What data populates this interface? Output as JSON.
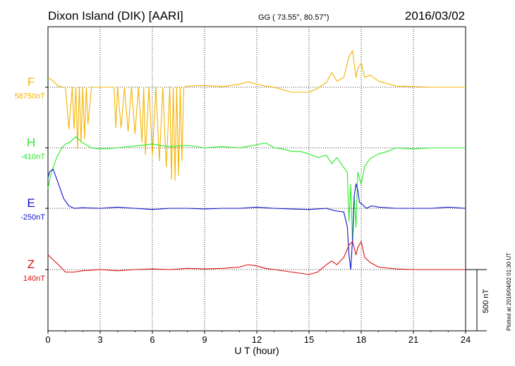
{
  "header": {
    "station": "Dixon Island (DIK)  [AARI]",
    "coords": "GG ( 73.55°,  80.57°)",
    "date": "2016/03/02"
  },
  "side_note": "Plotted at 2016/04/02 01:30 UT",
  "scale_label": "500 nT",
  "colors": {
    "F": "#f5b400",
    "H": "#22ee22",
    "E": "#1010d0",
    "Z": "#dd1010",
    "axis": "#000000"
  },
  "chart_data": {
    "type": "line",
    "xlabel": "U T (hour)",
    "xlim": [
      0,
      24
    ],
    "x_ticks": [
      "0",
      "3",
      "6",
      "9",
      "12",
      "15",
      "18",
      "21",
      "24"
    ],
    "scale_bar_nT": 500,
    "series": [
      {
        "name": "F",
        "baseline_label": "58750nT",
        "x": [
          0,
          0.3,
          0.6,
          0.9,
          1.0,
          1.2,
          1.4,
          1.5,
          1.6,
          1.7,
          1.8,
          1.9,
          2.0,
          2.1,
          2.2,
          2.3,
          2.5,
          3.0,
          3.5,
          3.8,
          3.9,
          4.0,
          4.2,
          4.4,
          4.6,
          4.8,
          5.0,
          5.2,
          5.4,
          5.5,
          5.6,
          5.8,
          6.0,
          6.2,
          6.4,
          6.6,
          6.8,
          7.0,
          7.1,
          7.2,
          7.3,
          7.4,
          7.5,
          7.6,
          7.7,
          7.8,
          8.0,
          9.0,
          10.0,
          11.0,
          11.5,
          12.0,
          12.5,
          13.0,
          14.0,
          15.0,
          15.5,
          16.0,
          16.3,
          16.6,
          17.0,
          17.3,
          17.5,
          17.7,
          17.8,
          18.0,
          18.2,
          18.5,
          19.0,
          20.0,
          21.0,
          22.0,
          23.0,
          24.0
        ],
        "y": [
          80,
          50,
          10,
          0,
          0,
          -340,
          0,
          -340,
          0,
          -500,
          0,
          -450,
          0,
          -420,
          0,
          -300,
          0,
          0,
          0,
          0,
          -330,
          0,
          -330,
          0,
          -360,
          0,
          -380,
          0,
          -450,
          0,
          -550,
          0,
          -560,
          0,
          -600,
          0,
          -650,
          0,
          -750,
          0,
          -760,
          0,
          -720,
          0,
          -600,
          0,
          10,
          15,
          5,
          25,
          45,
          25,
          10,
          0,
          -40,
          -40,
          -10,
          40,
          120,
          50,
          80,
          250,
          300,
          80,
          150,
          200,
          80,
          100,
          50,
          10,
          5,
          0,
          0,
          0
        ]
      },
      {
        "name": "H",
        "baseline_label": "-410nT",
        "x": [
          0,
          0.2,
          0.5,
          0.8,
          1.0,
          1.3,
          1.6,
          2.0,
          2.5,
          3.0,
          4.0,
          5.0,
          6.0,
          7.0,
          8.0,
          9.0,
          10.0,
          11.0,
          12.0,
          12.5,
          13.0,
          13.5,
          14.0,
          14.5,
          15.0,
          15.5,
          16.0,
          16.3,
          16.6,
          17.0,
          17.2,
          17.3,
          17.4,
          17.5,
          17.6,
          17.7,
          17.8,
          18.0,
          18.2,
          18.5,
          19.0,
          19.5,
          20.0,
          21.0,
          22.0,
          23.0,
          24.0
        ],
        "y": [
          -330,
          -200,
          -80,
          0,
          30,
          50,
          90,
          40,
          0,
          -10,
          0,
          15,
          30,
          10,
          20,
          0,
          10,
          0,
          25,
          40,
          0,
          -10,
          -30,
          -30,
          -50,
          -80,
          -60,
          -130,
          -80,
          -160,
          -200,
          -600,
          -300,
          -780,
          -400,
          -650,
          -200,
          -300,
          -150,
          -90,
          -50,
          -30,
          0,
          -10,
          0,
          0,
          0
        ]
      },
      {
        "name": "E",
        "baseline_label": "-250nT",
        "x": [
          0,
          0.1,
          0.3,
          0.6,
          0.9,
          1.2,
          1.5,
          2.0,
          3.0,
          4.0,
          5.0,
          6.0,
          7.0,
          8.0,
          9.0,
          10.0,
          11.0,
          12.0,
          13.0,
          14.0,
          15.0,
          16.0,
          16.5,
          17.0,
          17.2,
          17.3,
          17.4,
          17.5,
          17.6,
          17.7,
          17.8,
          17.9,
          18.0,
          18.3,
          18.6,
          19.0,
          20.0,
          21.0,
          22.0,
          23.0,
          24.0
        ],
        "y": [
          250,
          300,
          320,
          200,
          80,
          20,
          0,
          5,
          0,
          10,
          0,
          -10,
          0,
          0,
          -5,
          0,
          0,
          10,
          0,
          -5,
          -10,
          0,
          -20,
          -30,
          -150,
          -380,
          -500,
          -250,
          100,
          200,
          150,
          50,
          40,
          0,
          20,
          10,
          0,
          0,
          0,
          10,
          0
        ]
      },
      {
        "name": "Z",
        "baseline_label": "140nT",
        "x": [
          0,
          0.3,
          0.6,
          1.0,
          1.5,
          2.0,
          3.0,
          4.0,
          5.0,
          6.0,
          7.0,
          8.0,
          9.0,
          10.0,
          11.0,
          11.5,
          12.0,
          12.5,
          13.0,
          14.0,
          15.0,
          15.5,
          16.0,
          16.3,
          16.6,
          17.0,
          17.3,
          17.5,
          17.7,
          17.8,
          18.0,
          18.2,
          18.5,
          19.0,
          20.0,
          21.0,
          22.0,
          23.0,
          24.0
        ],
        "y": [
          120,
          80,
          40,
          -20,
          -20,
          -10,
          0,
          -10,
          0,
          5,
          0,
          10,
          5,
          10,
          20,
          40,
          30,
          10,
          0,
          -20,
          -40,
          -20,
          40,
          70,
          40,
          100,
          200,
          230,
          120,
          180,
          230,
          100,
          60,
          20,
          5,
          0,
          0,
          0,
          0
        ]
      }
    ]
  }
}
